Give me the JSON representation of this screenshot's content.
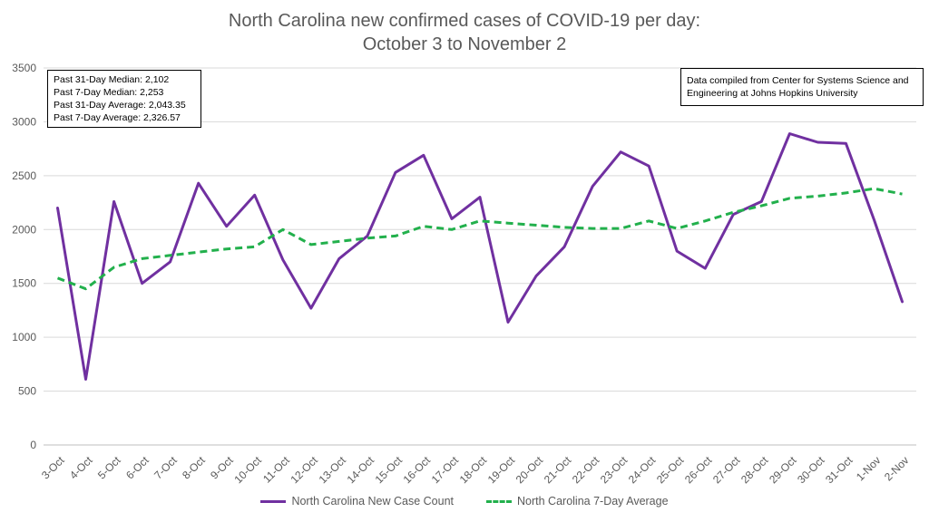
{
  "chart_data": {
    "type": "line",
    "title": "North Carolina new confirmed cases of COVID-19 per day:",
    "subtitle": "October 3 to November 2",
    "xlabel": "",
    "ylabel": "",
    "ylim": [
      0,
      3500
    ],
    "yticks": [
      "0",
      "500",
      "1000",
      "1500",
      "2000",
      "2500",
      "3000",
      "3500"
    ],
    "grid": true,
    "legend_position": "bottom",
    "categories": [
      "3-Oct",
      "4-Oct",
      "5-Oct",
      "6-Oct",
      "7-Oct",
      "8-Oct",
      "9-Oct",
      "10-Oct",
      "11-Oct",
      "12-Oct",
      "13-Oct",
      "14-Oct",
      "15-Oct",
      "16-Oct",
      "17-Oct",
      "18-Oct",
      "19-Oct",
      "20-Oct",
      "21-Oct",
      "22-Oct",
      "23-Oct",
      "24-Oct",
      "25-Oct",
      "26-Oct",
      "27-Oct",
      "28-Oct",
      "29-Oct",
      "30-Oct",
      "31-Oct",
      "1-Nov",
      "2-Nov"
    ],
    "series": [
      {
        "name": "North Carolina New Case Count",
        "color": "#7030A0",
        "style": "solid",
        "values": [
          2200,
          610,
          2260,
          1500,
          1700,
          2430,
          2030,
          2320,
          1720,
          1270,
          1730,
          1940,
          2530,
          2690,
          2100,
          2300,
          1140,
          1570,
          1840,
          2400,
          2720,
          2590,
          1800,
          1640,
          2140,
          2260,
          2890,
          2810,
          2800,
          2090,
          1330
        ]
      },
      {
        "name": "North Carolina 7-Day Average",
        "color": "#22B04C",
        "style": "dashed",
        "values": [
          1550,
          1450,
          1650,
          1730,
          1760,
          1790,
          1820,
          1840,
          2000,
          1860,
          1890,
          1920,
          1940,
          2030,
          2000,
          2080,
          2060,
          2040,
          2020,
          2010,
          2010,
          2080,
          2010,
          2080,
          2160,
          2220,
          2290,
          2310,
          2340,
          2380,
          2330
        ]
      }
    ],
    "stats_box": [
      "Past 31-Day Median: 2,102",
      "Past 7-Day Median: 2,253",
      "Past 31-Day Average: 2,043.35",
      "Past 7-Day Average: 2,326.57"
    ],
    "source_note": [
      "Data compiled from Center for Systems Science and",
      "Engineering at Johns Hopkins University"
    ]
  },
  "colors": {
    "grid": "#D9D9D9",
    "axis_text": "#595959",
    "title_text": "#595959"
  }
}
